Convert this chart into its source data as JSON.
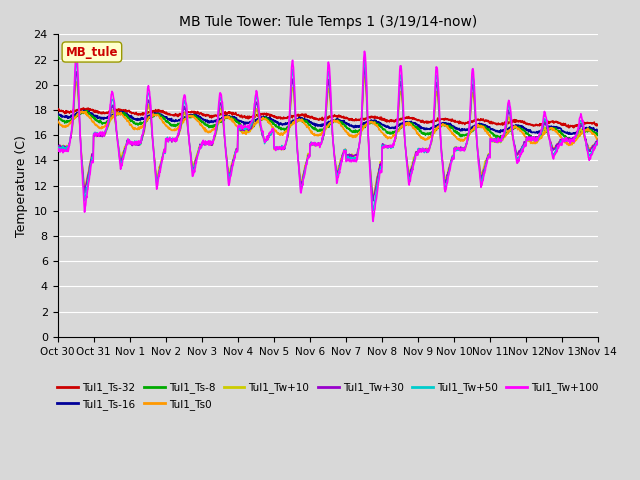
{
  "title": "MB Tule Tower: Tule Temps 1 (3/19/14-now)",
  "ylabel": "Temperature (C)",
  "ylim": [
    0,
    24
  ],
  "yticks": [
    0,
    2,
    4,
    6,
    8,
    10,
    12,
    14,
    16,
    18,
    20,
    22,
    24
  ],
  "date_labels": [
    "Oct 30",
    "Oct 31",
    "Nov 1",
    "Nov 2",
    "Nov 3",
    "Nov 4",
    "Nov 5",
    "Nov 6",
    "Nov 7",
    "Nov 8",
    "Nov 9",
    "Nov 10",
    "Nov 11",
    "Nov 12",
    "Nov 13",
    "Nov 14"
  ],
  "inset_label": "MB_tule",
  "inset_color": "#cc0000",
  "background_color": "#d8d8d8",
  "grid_color": "#bbbbbb",
  "fig_facecolor": "#d8d8d8",
  "series": [
    {
      "label": "Tul1_Ts-32",
      "color": "#cc0000"
    },
    {
      "label": "Tul1_Ts-16",
      "color": "#000099"
    },
    {
      "label": "Tul1_Ts-8",
      "color": "#00aa00"
    },
    {
      "label": "Tul1_Ts0",
      "color": "#ff9900"
    },
    {
      "label": "Tul1_Tw+10",
      "color": "#cccc00"
    },
    {
      "label": "Tul1_Tw+30",
      "color": "#9900cc"
    },
    {
      "label": "Tul1_Tw+50",
      "color": "#00cccc"
    },
    {
      "label": "Tul1_Tw+100",
      "color": "#ff00ff"
    }
  ]
}
